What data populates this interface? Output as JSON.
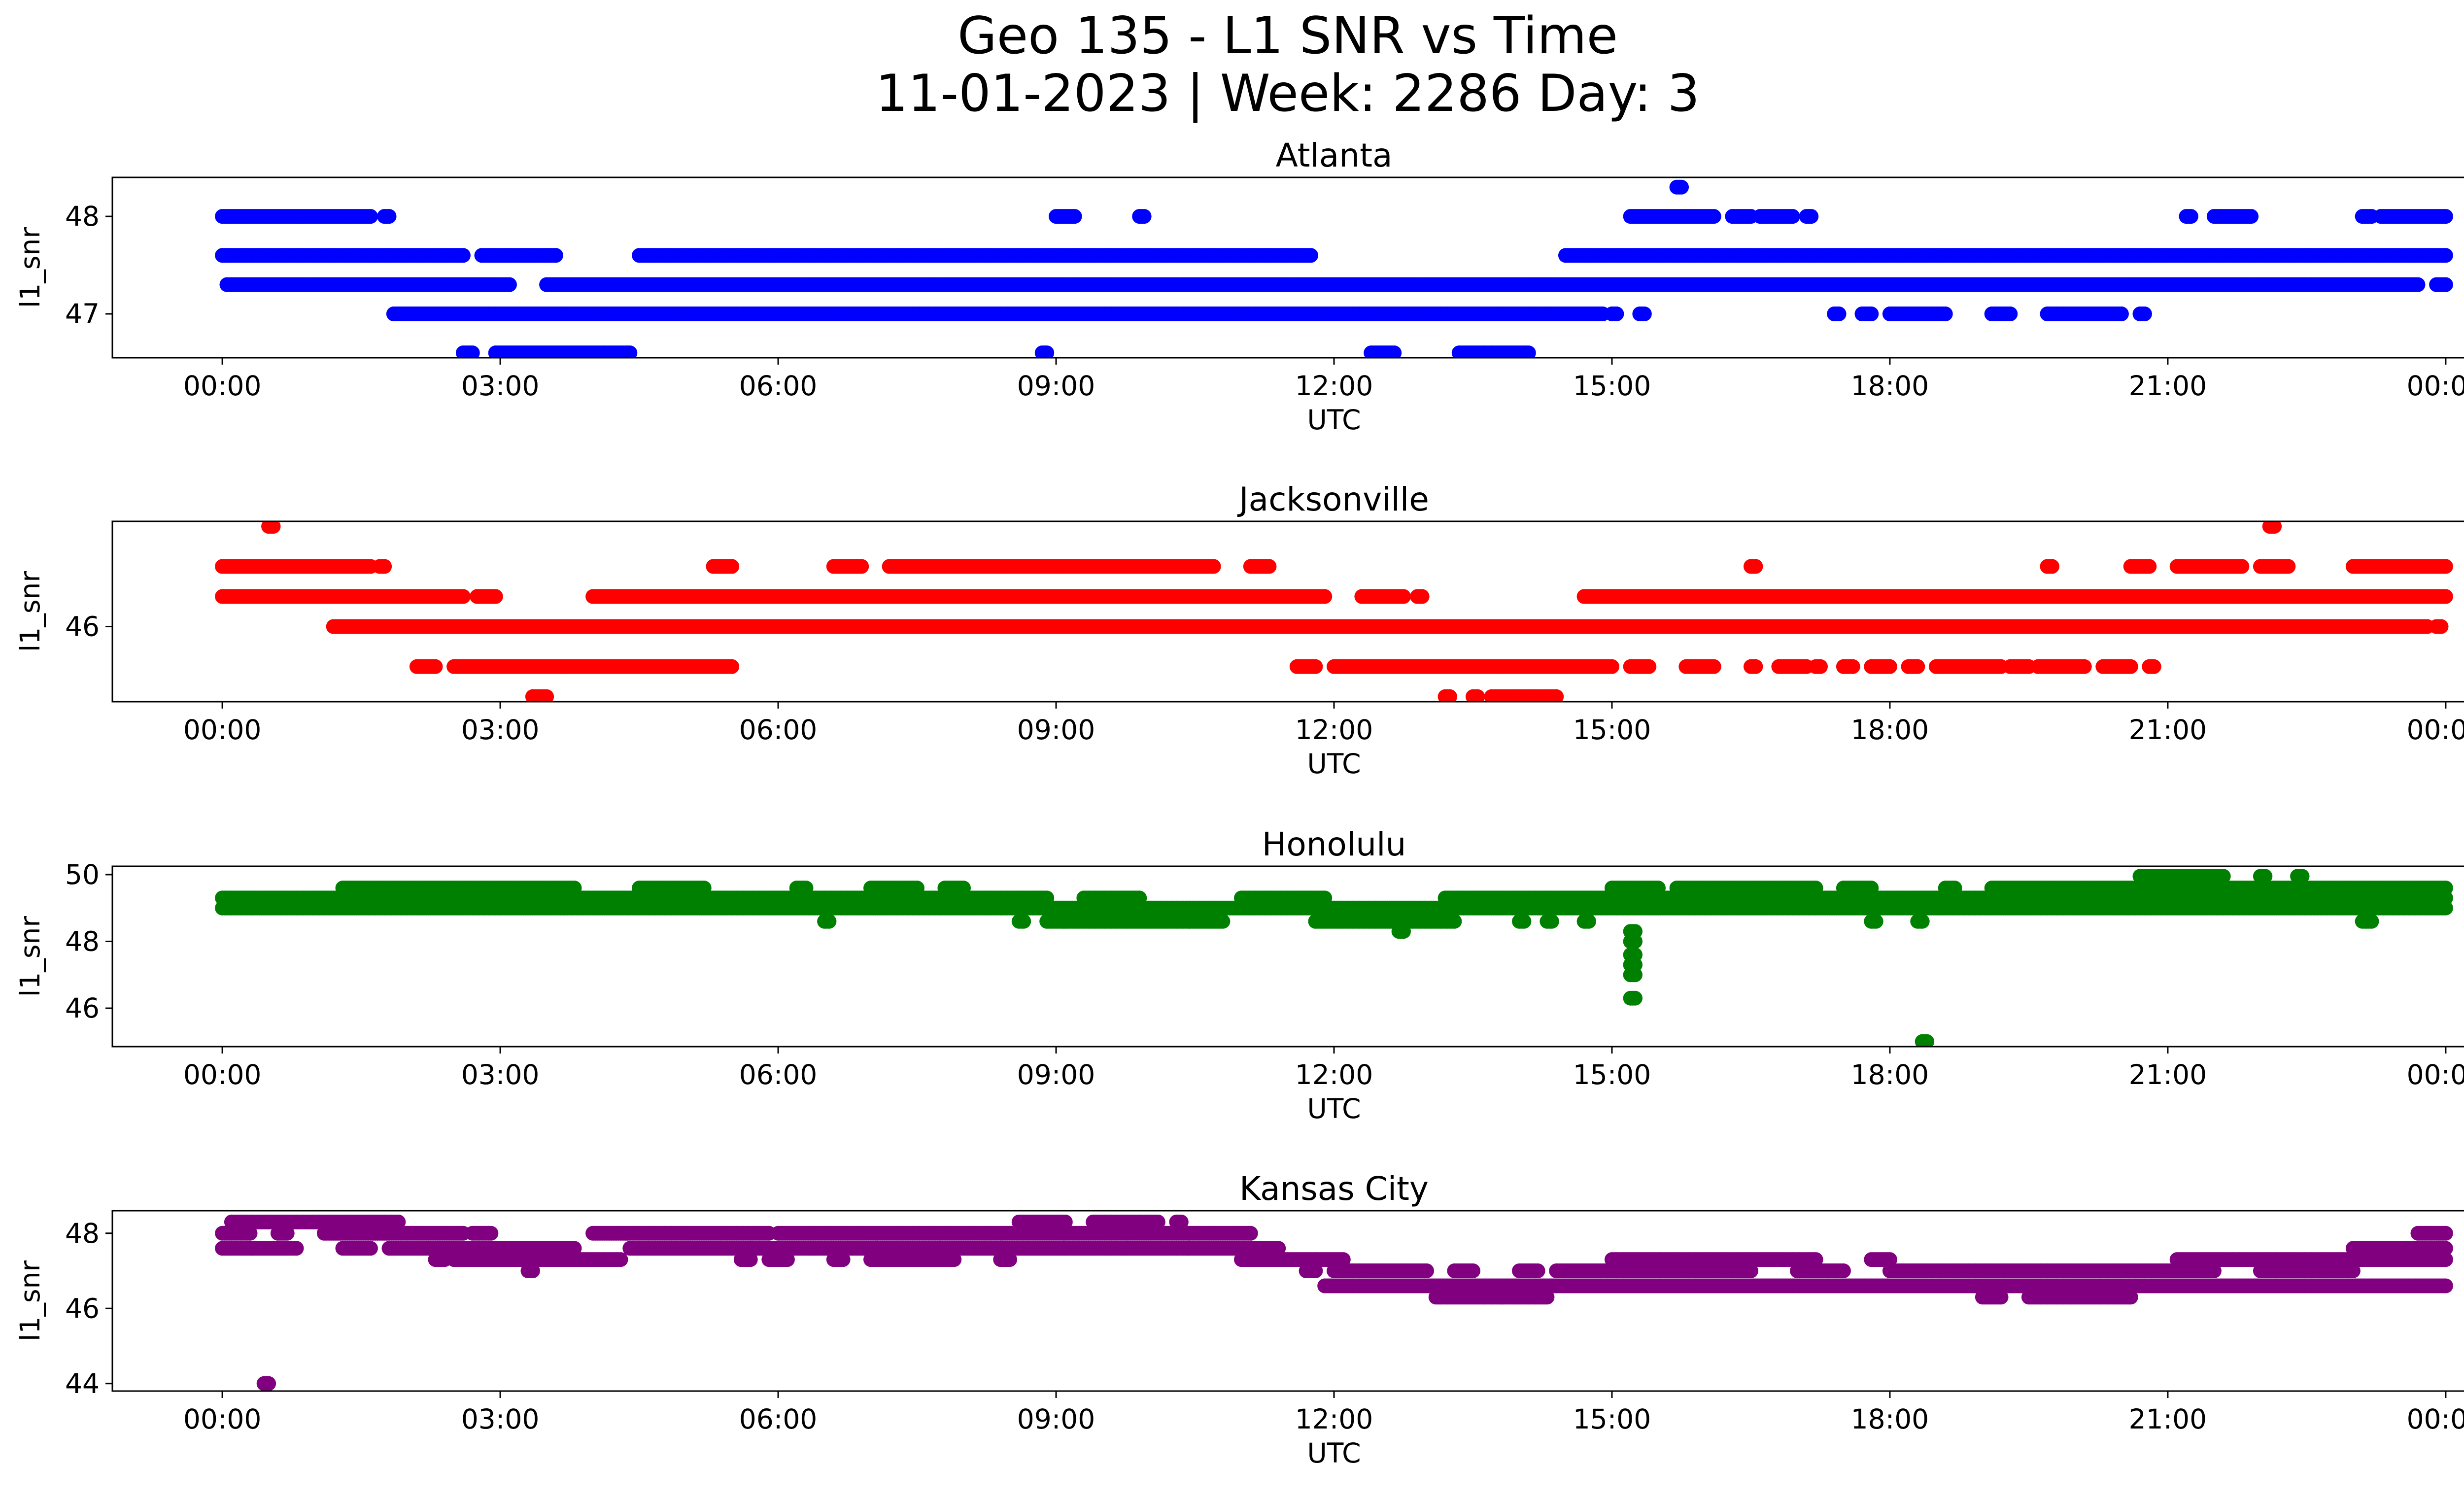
{
  "chart_data": {
    "title_line1": "Geo 135 - L1 SNR vs Time",
    "title_line2": "11-01-2023 | Week: 2286 Day: 3",
    "type": "scatter",
    "x_tick_labels": [
      "00:00",
      "03:00",
      "06:00",
      "09:00",
      "12:00",
      "15:00",
      "18:00",
      "21:00",
      "00:00"
    ],
    "x_ticks_hours": [
      0,
      3,
      6,
      9,
      12,
      15,
      18,
      21,
      24
    ],
    "xlabel": "UTC",
    "ylabel": "l1_snr",
    "grid": false,
    "charts": [
      {
        "title": "Atlanta",
        "color": "#0000ff",
        "ylim": [
          46.55,
          48.4
        ],
        "y_ticks": [
          47,
          48
        ],
        "y_tick_labels": [
          "47",
          "48"
        ],
        "levels": [
          {
            "y": 47.6,
            "segments": [
              [
                0.0,
                2.6
              ],
              [
                2.8,
                3.6
              ],
              [
                4.5,
                11.75
              ],
              [
                14.5,
                24.0
              ]
            ]
          },
          {
            "y": 47.3,
            "segments": [
              [
                0.05,
                3.1
              ],
              [
                3.5,
                23.7
              ],
              [
                23.9,
                24.0
              ]
            ]
          },
          {
            "y": 48.0,
            "segments": [
              [
                0.0,
                1.6
              ],
              [
                1.75,
                1.8
              ],
              [
                9.0,
                9.2
              ],
              [
                9.9,
                9.95
              ],
              [
                15.2,
                16.1
              ],
              [
                16.3,
                16.5
              ],
              [
                16.6,
                16.95
              ],
              [
                17.1,
                17.15
              ],
              [
                21.2,
                21.25
              ],
              [
                21.5,
                21.9
              ],
              [
                23.1,
                23.2
              ],
              [
                23.3,
                24.0
              ]
            ]
          },
          {
            "y": 47.0,
            "segments": [
              [
                1.85,
                14.9
              ],
              [
                15.0,
                15.05
              ],
              [
                15.3,
                15.35
              ],
              [
                17.4,
                17.45
              ],
              [
                17.7,
                17.8
              ],
              [
                18.0,
                18.6
              ],
              [
                19.1,
                19.3
              ],
              [
                19.7,
                20.5
              ],
              [
                20.7,
                20.75
              ]
            ]
          },
          {
            "y": 46.6,
            "segments": [
              [
                2.6,
                2.7
              ],
              [
                2.95,
                4.4
              ],
              [
                8.85,
                8.9
              ],
              [
                12.4,
                12.65
              ],
              [
                13.35,
                14.1
              ]
            ]
          },
          {
            "y": 48.3,
            "segments": [
              [
                15.7,
                15.75
              ]
            ]
          }
        ]
      },
      {
        "title": "Jacksonville",
        "color": "#ff0000",
        "ylim": [
          45.25,
          47.05
        ],
        "y_ticks": [
          46
        ],
        "y_tick_labels": [
          "46"
        ],
        "levels": [
          {
            "y": 46.6,
            "segments": [
              [
                0.0,
                1.6
              ],
              [
                1.7,
                1.75
              ],
              [
                5.3,
                5.5
              ],
              [
                6.6,
                6.9
              ],
              [
                7.2,
                10.7
              ],
              [
                11.1,
                11.3
              ],
              [
                16.5,
                16.55
              ],
              [
                19.7,
                19.75
              ],
              [
                20.6,
                20.8
              ],
              [
                21.1,
                21.8
              ],
              [
                22.0,
                22.3
              ],
              [
                23.0,
                24.0
              ]
            ]
          },
          {
            "y": 46.3,
            "segments": [
              [
                0.0,
                2.6
              ],
              [
                2.75,
                2.95
              ],
              [
                4.0,
                11.9
              ],
              [
                12.3,
                12.75
              ],
              [
                12.9,
                12.95
              ],
              [
                14.7,
                24.0
              ]
            ]
          },
          {
            "y": 46.0,
            "segments": [
              [
                1.2,
                23.8
              ],
              [
                23.9,
                23.95
              ]
            ]
          },
          {
            "y": 45.6,
            "segments": [
              [
                2.1,
                2.3
              ],
              [
                2.5,
                5.5
              ],
              [
                11.6,
                11.8
              ],
              [
                12.0,
                15.0
              ],
              [
                15.2,
                15.4
              ],
              [
                15.8,
                16.1
              ],
              [
                16.5,
                16.55
              ],
              [
                16.8,
                17.1
              ],
              [
                17.2,
                17.25
              ],
              [
                17.5,
                17.6
              ],
              [
                17.8,
                18.0
              ],
              [
                18.2,
                18.3
              ],
              [
                18.5,
                19.2
              ],
              [
                19.3,
                19.5
              ],
              [
                19.6,
                20.1
              ],
              [
                20.3,
                20.6
              ],
              [
                20.8,
                20.85
              ]
            ]
          },
          {
            "y": 45.3,
            "segments": [
              [
                3.35,
                3.5
              ],
              [
                13.2,
                13.25
              ],
              [
                13.5,
                13.55
              ],
              [
                13.7,
                14.4
              ]
            ]
          },
          {
            "y": 47.0,
            "segments": [
              [
                0.5,
                0.55
              ],
              [
                22.1,
                22.15
              ]
            ]
          }
        ]
      },
      {
        "title": "Honolulu",
        "color": "#008000",
        "ylim": [
          44.85,
          50.25
        ],
        "y_ticks": [
          46,
          48,
          50
        ],
        "y_tick_labels": [
          "46",
          "48",
          "50"
        ],
        "levels": [
          {
            "y": 49.3,
            "segments": [
              [
                0.0,
                8.9
              ],
              [
                9.3,
                9.9
              ],
              [
                11.0,
                11.9
              ],
              [
                13.2,
                24.0
              ]
            ]
          },
          {
            "y": 49.0,
            "segments": [
              [
                0.0,
                24.0
              ]
            ]
          },
          {
            "y": 49.6,
            "segments": [
              [
                1.3,
                3.8
              ],
              [
                4.5,
                5.2
              ],
              [
                6.2,
                6.3
              ],
              [
                7.0,
                7.5
              ],
              [
                7.8,
                8.0
              ],
              [
                15.0,
                15.5
              ],
              [
                15.7,
                17.2
              ],
              [
                17.5,
                17.8
              ],
              [
                18.6,
                18.7
              ],
              [
                19.1,
                24.0
              ]
            ]
          },
          {
            "y": 48.6,
            "segments": [
              [
                6.5,
                6.55
              ],
              [
                8.6,
                8.65
              ],
              [
                8.9,
                10.8
              ],
              [
                11.8,
                13.3
              ],
              [
                14.0,
                14.05
              ],
              [
                14.3,
                14.35
              ],
              [
                14.7,
                14.75
              ],
              [
                17.8,
                17.85
              ],
              [
                18.3,
                18.35
              ],
              [
                23.1,
                23.2
              ]
            ]
          },
          {
            "y": 49.95,
            "segments": [
              [
                20.7,
                21.6
              ],
              [
                22.0,
                22.05
              ],
              [
                22.4,
                22.45
              ]
            ]
          },
          {
            "y": 48.3,
            "segments": [
              [
                12.7,
                12.75
              ],
              [
                15.2,
                15.25
              ]
            ]
          },
          {
            "y": 48.0,
            "segments": [
              [
                15.2,
                15.25
              ]
            ]
          },
          {
            "y": 47.6,
            "segments": [
              [
                15.2,
                15.25
              ]
            ]
          },
          {
            "y": 47.3,
            "segments": [
              [
                15.2,
                15.25
              ]
            ]
          },
          {
            "y": 47.0,
            "segments": [
              [
                15.2,
                15.25
              ]
            ]
          },
          {
            "y": 46.3,
            "segments": [
              [
                15.2,
                15.25
              ]
            ]
          },
          {
            "y": 45.0,
            "segments": [
              [
                18.35,
                18.4
              ]
            ]
          }
        ]
      },
      {
        "title": "Kansas City",
        "color": "#800080",
        "ylim": [
          43.8,
          48.6
        ],
        "y_ticks": [
          44,
          46,
          48
        ],
        "y_tick_labels": [
          "44",
          "46",
          "48"
        ],
        "levels": [
          {
            "y": 48.3,
            "segments": [
              [
                0.1,
                1.9
              ],
              [
                8.6,
                9.1
              ],
              [
                9.4,
                10.1
              ],
              [
                10.3,
                10.35
              ]
            ]
          },
          {
            "y": 48.0,
            "segments": [
              [
                0.0,
                0.3
              ],
              [
                0.6,
                0.7
              ],
              [
                1.1,
                2.6
              ],
              [
                2.7,
                2.9
              ],
              [
                4.0,
                5.9
              ],
              [
                6.0,
                11.1
              ],
              [
                23.7,
                24.0
              ]
            ]
          },
          {
            "y": 47.6,
            "segments": [
              [
                0.0,
                0.8
              ],
              [
                1.3,
                1.6
              ],
              [
                1.8,
                3.8
              ],
              [
                4.4,
                11.4
              ],
              [
                23.0,
                24.0
              ]
            ]
          },
          {
            "y": 47.3,
            "segments": [
              [
                2.3,
                2.4
              ],
              [
                2.5,
                4.3
              ],
              [
                5.6,
                5.7
              ],
              [
                5.9,
                6.1
              ],
              [
                6.6,
                6.7
              ],
              [
                7.0,
                7.9
              ],
              [
                8.4,
                8.5
              ],
              [
                11.0,
                12.1
              ],
              [
                15.0,
                17.2
              ],
              [
                17.8,
                18.0
              ],
              [
                21.1,
                24.0
              ]
            ]
          },
          {
            "y": 47.0,
            "segments": [
              [
                3.3,
                3.35
              ],
              [
                11.7,
                11.8
              ],
              [
                12.0,
                13.0
              ],
              [
                13.3,
                13.5
              ],
              [
                14.0,
                14.2
              ],
              [
                14.4,
                16.5
              ],
              [
                17.0,
                17.5
              ],
              [
                18.0,
                21.5
              ],
              [
                22.0,
                23.0
              ]
            ]
          },
          {
            "y": 46.6,
            "segments": [
              [
                11.9,
                24.0
              ]
            ]
          },
          {
            "y": 46.3,
            "segments": [
              [
                13.1,
                14.3
              ],
              [
                19.0,
                19.2
              ],
              [
                19.5,
                20.6
              ]
            ]
          },
          {
            "y": 44.0,
            "segments": [
              [
                0.45,
                0.5
              ]
            ]
          }
        ]
      }
    ]
  }
}
